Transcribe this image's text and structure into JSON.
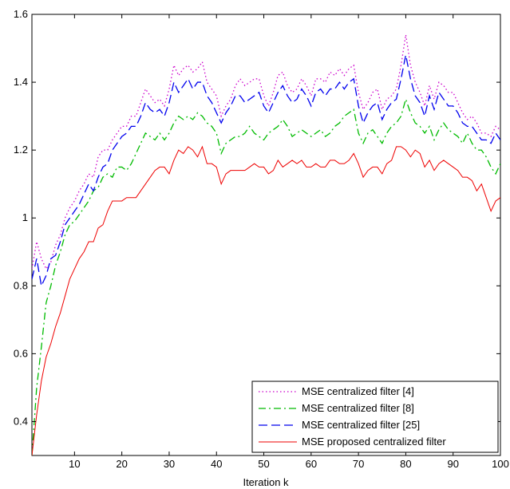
{
  "chart_data": {
    "type": "line",
    "title": "",
    "xlabel": "Iteration k",
    "ylabel": "",
    "xlim": [
      1,
      100
    ],
    "ylim": [
      0.3,
      1.6
    ],
    "xticks": [
      10,
      20,
      30,
      40,
      50,
      60,
      70,
      80,
      90,
      100
    ],
    "yticks": [
      0.4,
      0.6,
      0.8,
      1,
      1.2,
      1.4,
      1.6
    ],
    "xtick_labels": [
      "10",
      "20",
      "30",
      "40",
      "50",
      "60",
      "70",
      "80",
      "90",
      "100"
    ],
    "ytick_labels": [
      "0.4",
      "0.6",
      "0.8",
      "1",
      "1.2",
      "1.4",
      "1.6"
    ],
    "grid": false,
    "legend_position": "bottom-right",
    "series": [
      {
        "name": "MSE centralized filter [4]",
        "color": "#cc00cc",
        "style": "dotted",
        "values": [
          0.85,
          0.93,
          0.88,
          0.85,
          0.87,
          0.92,
          0.95,
          1.0,
          1.03,
          1.05,
          1.08,
          1.1,
          1.13,
          1.12,
          1.18,
          1.2,
          1.2,
          1.23,
          1.25,
          1.27,
          1.27,
          1.3,
          1.3,
          1.34,
          1.38,
          1.36,
          1.34,
          1.35,
          1.33,
          1.38,
          1.45,
          1.42,
          1.44,
          1.45,
          1.43,
          1.44,
          1.46,
          1.4,
          1.38,
          1.36,
          1.3,
          1.33,
          1.35,
          1.39,
          1.41,
          1.39,
          1.4,
          1.41,
          1.41,
          1.36,
          1.33,
          1.37,
          1.42,
          1.43,
          1.39,
          1.37,
          1.38,
          1.41,
          1.39,
          1.36,
          1.41,
          1.41,
          1.4,
          1.43,
          1.42,
          1.44,
          1.42,
          1.44,
          1.45,
          1.37,
          1.32,
          1.34,
          1.37,
          1.38,
          1.32,
          1.35,
          1.36,
          1.38,
          1.45,
          1.54,
          1.45,
          1.4,
          1.37,
          1.33,
          1.39,
          1.35,
          1.4,
          1.39,
          1.37,
          1.37,
          1.34,
          1.31,
          1.29,
          1.3,
          1.28,
          1.25,
          1.25,
          1.24,
          1.27,
          1.26
        ]
      },
      {
        "name": "MSE centralized filter [8]",
        "color": "#00bb00",
        "style": "dashdot",
        "values": [
          0.3,
          0.5,
          0.62,
          0.75,
          0.8,
          0.86,
          0.9,
          0.95,
          0.98,
          0.99,
          1.01,
          1.03,
          1.05,
          1.08,
          1.09,
          1.12,
          1.13,
          1.12,
          1.15,
          1.15,
          1.14,
          1.16,
          1.19,
          1.22,
          1.25,
          1.24,
          1.23,
          1.25,
          1.23,
          1.25,
          1.28,
          1.3,
          1.29,
          1.3,
          1.29,
          1.31,
          1.3,
          1.28,
          1.27,
          1.25,
          1.19,
          1.22,
          1.23,
          1.24,
          1.24,
          1.25,
          1.27,
          1.25,
          1.24,
          1.23,
          1.25,
          1.26,
          1.27,
          1.29,
          1.27,
          1.24,
          1.25,
          1.26,
          1.25,
          1.24,
          1.25,
          1.26,
          1.24,
          1.25,
          1.27,
          1.28,
          1.3,
          1.31,
          1.32,
          1.25,
          1.22,
          1.25,
          1.26,
          1.24,
          1.22,
          1.25,
          1.27,
          1.28,
          1.3,
          1.35,
          1.31,
          1.28,
          1.27,
          1.25,
          1.27,
          1.23,
          1.26,
          1.28,
          1.26,
          1.25,
          1.24,
          1.22,
          1.25,
          1.22,
          1.2,
          1.2,
          1.18,
          1.15,
          1.13,
          1.16
        ]
      },
      {
        "name": "MSE centralized filter [25]",
        "color": "#0000ee",
        "style": "dashed",
        "values": [
          0.82,
          0.88,
          0.8,
          0.83,
          0.88,
          0.89,
          0.93,
          0.98,
          1.0,
          1.02,
          1.04,
          1.07,
          1.1,
          1.08,
          1.12,
          1.15,
          1.16,
          1.2,
          1.22,
          1.24,
          1.25,
          1.27,
          1.27,
          1.3,
          1.34,
          1.32,
          1.31,
          1.32,
          1.3,
          1.34,
          1.4,
          1.37,
          1.39,
          1.41,
          1.38,
          1.4,
          1.4,
          1.36,
          1.34,
          1.31,
          1.28,
          1.31,
          1.33,
          1.36,
          1.36,
          1.34,
          1.35,
          1.36,
          1.37,
          1.33,
          1.31,
          1.34,
          1.37,
          1.39,
          1.36,
          1.34,
          1.35,
          1.38,
          1.36,
          1.33,
          1.37,
          1.38,
          1.36,
          1.38,
          1.38,
          1.4,
          1.38,
          1.4,
          1.41,
          1.33,
          1.28,
          1.31,
          1.33,
          1.34,
          1.29,
          1.32,
          1.34,
          1.35,
          1.41,
          1.48,
          1.41,
          1.36,
          1.34,
          1.3,
          1.36,
          1.32,
          1.37,
          1.35,
          1.33,
          1.33,
          1.31,
          1.28,
          1.27,
          1.27,
          1.25,
          1.23,
          1.23,
          1.22,
          1.25,
          1.23
        ]
      },
      {
        "name": "MSE proposed centralized filter",
        "color": "#ee0000",
        "style": "solid",
        "values": [
          0.3,
          0.42,
          0.52,
          0.59,
          0.63,
          0.68,
          0.72,
          0.77,
          0.82,
          0.85,
          0.88,
          0.9,
          0.93,
          0.93,
          0.97,
          0.98,
          1.02,
          1.05,
          1.05,
          1.05,
          1.06,
          1.06,
          1.06,
          1.08,
          1.1,
          1.12,
          1.14,
          1.15,
          1.15,
          1.13,
          1.17,
          1.2,
          1.19,
          1.21,
          1.2,
          1.18,
          1.21,
          1.16,
          1.16,
          1.15,
          1.1,
          1.13,
          1.14,
          1.14,
          1.14,
          1.14,
          1.15,
          1.16,
          1.15,
          1.15,
          1.13,
          1.14,
          1.17,
          1.15,
          1.16,
          1.17,
          1.16,
          1.17,
          1.15,
          1.15,
          1.16,
          1.15,
          1.15,
          1.17,
          1.17,
          1.16,
          1.16,
          1.17,
          1.19,
          1.16,
          1.12,
          1.14,
          1.15,
          1.15,
          1.13,
          1.16,
          1.17,
          1.21,
          1.21,
          1.2,
          1.18,
          1.2,
          1.19,
          1.15,
          1.17,
          1.14,
          1.16,
          1.17,
          1.16,
          1.15,
          1.14,
          1.12,
          1.12,
          1.11,
          1.08,
          1.1,
          1.06,
          1.02,
          1.05,
          1.06
        ]
      }
    ]
  }
}
